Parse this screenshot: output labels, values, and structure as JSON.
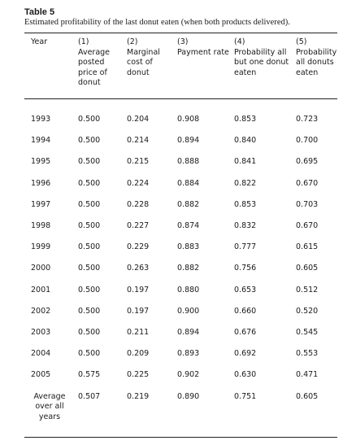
{
  "table": {
    "label": "Table 5",
    "caption": "Estimated profitability of the last donut eaten (when both products delivered).",
    "headers": [
      "Year",
      "(1)\nAverage\nposted\nprice of\ndonut",
      "(2)\nMarginal\ncost of\ndonut",
      "(3)\nPayment rate",
      "(4)\nProbability all\nbut one donut\neaten",
      "(5)\nProbability\nall donuts\neaten"
    ],
    "rows": [
      [
        "1993",
        "0.500",
        "0.204",
        "0.908",
        "0.853",
        "0.723"
      ],
      [
        "1994",
        "0.500",
        "0.214",
        "0.894",
        "0.840",
        "0.700"
      ],
      [
        "1995",
        "0.500",
        "0.215",
        "0.888",
        "0.841",
        "0.695"
      ],
      [
        "1996",
        "0.500",
        "0.224",
        "0.884",
        "0.822",
        "0.670"
      ],
      [
        "1997",
        "0.500",
        "0.228",
        "0.882",
        "0.853",
        "0.703"
      ],
      [
        "1998",
        "0.500",
        "0.227",
        "0.874",
        "0.832",
        "0.670"
      ],
      [
        "1999",
        "0.500",
        "0.229",
        "0.883",
        "0.777",
        "0.615"
      ],
      [
        "2000",
        "0.500",
        "0.263",
        "0.882",
        "0.756",
        "0.605"
      ],
      [
        "2001",
        "0.500",
        "0.197",
        "0.880",
        "0.653",
        "0.512"
      ],
      [
        "2002",
        "0.500",
        "0.197",
        "0.900",
        "0.660",
        "0.520"
      ],
      [
        "2003",
        "0.500",
        "0.211",
        "0.894",
        "0.676",
        "0.545"
      ],
      [
        "2004",
        "0.500",
        "0.209",
        "0.893",
        "0.692",
        "0.553"
      ],
      [
        "2005",
        "0.575",
        "0.225",
        "0.902",
        "0.630",
        "0.471"
      ]
    ],
    "summary_row": [
      "Average\nover all\nyears",
      "0.507",
      "0.219",
      "0.890",
      "0.751",
      "0.605"
    ]
  }
}
